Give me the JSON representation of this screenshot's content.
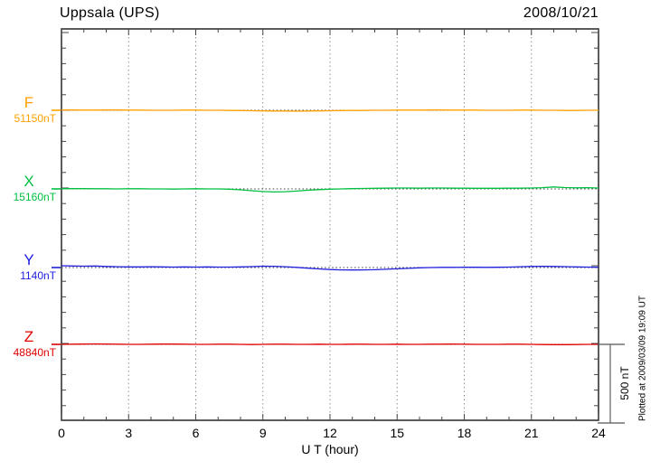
{
  "chart_data": {
    "type": "line",
    "title": "Uppsala (UPS)",
    "date": "2008/10/21",
    "xlabel": "U T (hour)",
    "plotted_at": "Plotted at 2009/03/09 19:09 UT",
    "x_range": [
      0,
      24
    ],
    "x_ticks": [
      0,
      3,
      6,
      9,
      12,
      15,
      18,
      21,
      24
    ],
    "x_minor_tick_step_hours": 1,
    "grid": "vertical dotted gridlines every 3 hours; dotted horizontal baseline per trace",
    "legend_position": "left margin, one colored label per trace",
    "scale_bar": {
      "label": "500 nT",
      "nT": 500
    },
    "x_start_hour": 0,
    "x_step_hours": 0.5,
    "series": [
      {
        "name": "F",
        "baseline_label": "51150nT",
        "baseline_nT": 51150,
        "color": "#FFA000",
        "values": [
          51152,
          51152,
          51151,
          51151,
          51152,
          51152,
          51151,
          51151,
          51150,
          51150,
          51150,
          51151,
          51151,
          51150,
          51150,
          51149,
          51148,
          51147,
          51146,
          51145,
          51145,
          51144,
          51145,
          51146,
          51147,
          51148,
          51149,
          51149,
          51150,
          51150,
          51151,
          51151,
          51151,
          51152,
          51152,
          51151,
          51151,
          51151,
          51150,
          51150,
          51150,
          51151,
          51151,
          51150,
          51150,
          51149,
          51149,
          51150,
          51150
        ]
      },
      {
        "name": "X",
        "baseline_label": "15160nT",
        "baseline_nT": 15160,
        "color": "#00C040",
        "values": [
          15161,
          15162,
          15162,
          15161,
          15161,
          15160,
          15161,
          15161,
          15160,
          15160,
          15159,
          15160,
          15161,
          15160,
          15160,
          15158,
          15154,
          15148,
          15143,
          15140,
          15142,
          15146,
          15151,
          15155,
          15158,
          15160,
          15162,
          15163,
          15164,
          15165,
          15166,
          15166,
          15165,
          15166,
          15166,
          15165,
          15165,
          15164,
          15164,
          15164,
          15165,
          15165,
          15166,
          15168,
          15173,
          15169,
          15167,
          15168,
          15166
        ]
      },
      {
        "name": "Y",
        "baseline_label": "1140nT",
        "baseline_nT": 1140,
        "color": "#2020DD",
        "values": [
          1152,
          1150,
          1149,
          1150,
          1147,
          1145,
          1144,
          1144,
          1145,
          1144,
          1143,
          1144,
          1143,
          1144,
          1143,
          1143,
          1144,
          1146,
          1149,
          1148,
          1145,
          1141,
          1136,
          1131,
          1127,
          1125,
          1124,
          1125,
          1126,
          1129,
          1132,
          1135,
          1138,
          1140,
          1141,
          1141,
          1142,
          1142,
          1141,
          1142,
          1143,
          1145,
          1147,
          1148,
          1147,
          1146,
          1144,
          1143,
          1142
        ]
      },
      {
        "name": "Z",
        "baseline_label": "48840nT",
        "baseline_nT": 48840,
        "color": "#E00000",
        "values": [
          48840,
          48841,
          48842,
          48843,
          48842,
          48841,
          48840,
          48840,
          48841,
          48842,
          48842,
          48841,
          48840,
          48840,
          48841,
          48841,
          48840,
          48839,
          48840,
          48841,
          48841,
          48840,
          48840,
          48841,
          48840,
          48840,
          48841,
          48841,
          48840,
          48840,
          48841,
          48840,
          48840,
          48841,
          48841,
          48842,
          48841,
          48840,
          48840,
          48840,
          48841,
          48841,
          48840,
          48839,
          48838,
          48838,
          48839,
          48840,
          48840
        ]
      }
    ]
  }
}
